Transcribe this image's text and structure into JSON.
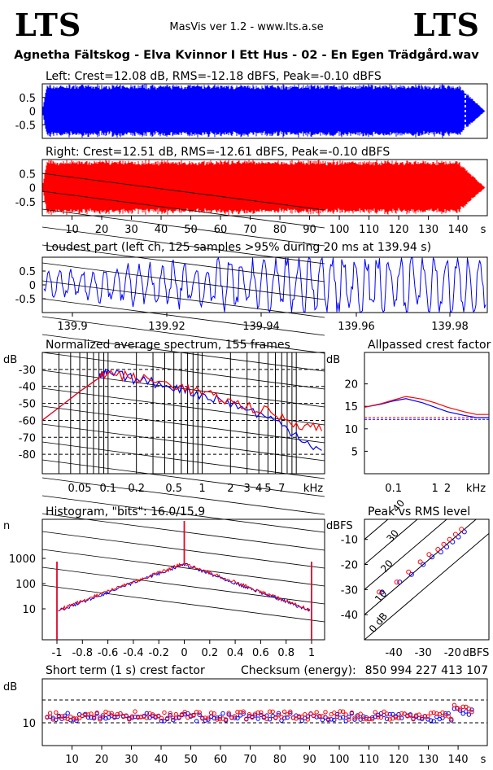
{
  "header": {
    "logo_left": "LTS",
    "logo_right": "LTS",
    "version": "MasVis ver 1.2 - www.lts.a.se",
    "file_title": "Agnetha Fältskog - Elva Kvinnor I Ett Hus - 02 - En Egen Trädgård.wav"
  },
  "colors": {
    "left": "#0000ff",
    "right": "#ff0000",
    "grid": "#000000"
  },
  "chart_data": [
    {
      "id": "left_waveform",
      "type": "area",
      "title": "Left: Crest=12.08 dB, RMS=-12.18 dBFS, Peak=-0.10 dBFS",
      "yticks": [
        "0.5",
        "0",
        "-0.5"
      ],
      "ylim": [
        -1,
        1
      ],
      "duration_s": 145,
      "marker_s": 139.94
    },
    {
      "id": "right_waveform",
      "type": "area",
      "title": "Right: Crest=12.51 dB, RMS=-12.61 dBFS, Peak=-0.10 dBFS",
      "yticks": [
        "0.5",
        "0",
        "-0.5"
      ],
      "ylim": [
        -1,
        1
      ],
      "xticks": [
        "10",
        "20",
        "30",
        "40",
        "50",
        "60",
        "70",
        "80",
        "90",
        "100",
        "110",
        "120",
        "130",
        "140"
      ],
      "xunit": "s"
    },
    {
      "id": "loudest_part",
      "type": "line",
      "title": "Loudest part (left  ch, 125 samples >95% during 20 ms at 139.94 s)",
      "yticks": [
        "0.5",
        "0",
        "-0.5"
      ],
      "xticks": [
        "139.9",
        "139.92",
        "139.94",
        "139.96",
        "139.98"
      ],
      "xlim": [
        139.88,
        140.0
      ]
    },
    {
      "id": "spectrum",
      "type": "line",
      "title": "Normalized average spectrum, 155 frames",
      "ylabel": "dB",
      "yticks": [
        "-30",
        "-40",
        "-50",
        "-60",
        "-70",
        "-80"
      ],
      "xticks": [
        "0.05",
        "0.1",
        "0.2",
        "0.5",
        "1",
        "2",
        "3",
        "4",
        "5",
        "7",
        "kHz"
      ],
      "series": [
        {
          "name": "left",
          "x": [
            0.02,
            0.05,
            0.08,
            0.1,
            0.2,
            0.5,
            1,
            2,
            5,
            10,
            20
          ],
          "y": [
            -60,
            -43,
            -35,
            -32,
            -36,
            -40,
            -45,
            -50,
            -58,
            -68,
            -80
          ]
        },
        {
          "name": "right",
          "x": [
            0.02,
            0.05,
            0.08,
            0.1,
            0.2,
            0.5,
            1,
            2,
            5,
            10,
            20
          ],
          "y": [
            -60,
            -43,
            -35,
            -32,
            -35,
            -39,
            -44,
            -49,
            -55,
            -62,
            -65
          ]
        }
      ]
    },
    {
      "id": "allpassed_crest",
      "type": "line",
      "title": "Allpassed crest factor",
      "ylabel": "dB",
      "yticks": [
        "20",
        "15",
        "10",
        "5"
      ],
      "xticks": [
        "0.1",
        "1",
        "2",
        "kHz"
      ],
      "series": [
        {
          "name": "left",
          "x": [
            0.02,
            0.05,
            0.1,
            0.2,
            0.5,
            1,
            2,
            5,
            10,
            20
          ],
          "y": [
            14.8,
            15.5,
            16.2,
            16.7,
            15.8,
            14.8,
            13.8,
            13.0,
            12.5,
            12.5
          ]
        },
        {
          "name": "right",
          "x": [
            0.02,
            0.05,
            0.1,
            0.2,
            0.5,
            1,
            2,
            5,
            10,
            20
          ],
          "y": [
            14.8,
            15.6,
            16.4,
            17.2,
            16.6,
            15.8,
            14.8,
            13.8,
            13.2,
            13.2
          ]
        }
      ],
      "reference_left": 12.1,
      "reference_right": 12.5
    },
    {
      "id": "histogram",
      "type": "line",
      "title": "Histogram, \"bits\": 16.0/15.9",
      "ylabel": "n",
      "yticks": [
        "1000",
        "100",
        "10"
      ],
      "xticks": [
        "-1",
        "-0.8",
        "-0.6",
        "-0.4",
        "-0.2",
        "0",
        "0.2",
        "0.4",
        "0.6",
        "0.8",
        "1"
      ],
      "xlim": [
        -1,
        1
      ],
      "yscale": "log"
    },
    {
      "id": "peak_vs_rms",
      "type": "scatter",
      "title": "Peak vs RMS level",
      "ylabel": "dBFS",
      "yticks": [
        "-10",
        "-20",
        "-30",
        "-40"
      ],
      "xticks": [
        "-40",
        "-30",
        "-20",
        "dBFS"
      ],
      "diagonal_labels": [
        "40",
        "30",
        "20",
        "10",
        "0 dB"
      ],
      "series": [
        {
          "name": "left",
          "x": [
            -44,
            -38,
            -34,
            -30,
            -27,
            -24,
            -22,
            -20,
            -18,
            -16
          ],
          "y": [
            -31,
            -27,
            -24,
            -20,
            -17,
            -15,
            -13,
            -11,
            -9,
            -7
          ]
        },
        {
          "name": "right",
          "x": [
            -45,
            -39,
            -35,
            -31,
            -28,
            -25,
            -23,
            -21,
            -19,
            -17
          ],
          "y": [
            -31,
            -27,
            -23,
            -19,
            -16,
            -14,
            -12,
            -10,
            -8,
            -6
          ]
        }
      ]
    },
    {
      "id": "short_term_crest",
      "type": "scatter",
      "title": "Short term (1 s) crest factor",
      "ylabel": "dB",
      "checksum_label": "Checksum (energy):",
      "checksum": "850 994 227 413 107",
      "yticks": [
        "10"
      ],
      "xticks": [
        "10",
        "20",
        "30",
        "40",
        "50",
        "60",
        "70",
        "80",
        "90",
        "100",
        "110",
        "120",
        "130",
        "140"
      ],
      "xunit": "s"
    }
  ]
}
